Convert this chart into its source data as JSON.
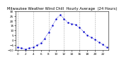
{
  "title": "Milwaukee Weather Wind Chill  Hourly Average  (24 Hours)",
  "hours": [
    0,
    1,
    2,
    3,
    4,
    5,
    6,
    7,
    8,
    9,
    10,
    11,
    12,
    13,
    14,
    15,
    16,
    17,
    18,
    19,
    20,
    21,
    22,
    23
  ],
  "wind_chill": [
    -7,
    -8,
    -9,
    -8,
    -7,
    -5,
    -3,
    2,
    8,
    15,
    22,
    26,
    22,
    18,
    17,
    16,
    13,
    9,
    5,
    3,
    1,
    -2,
    -4,
    -7
  ],
  "ylim": [
    -10,
    30
  ],
  "yticks": [
    -10,
    -5,
    0,
    5,
    10,
    15,
    20,
    25,
    30
  ],
  "xlim": [
    -0.5,
    23.5
  ],
  "line_color": "#0000cc",
  "marker_size": 1.5,
  "grid_color": "#888888",
  "bg_color": "#ffffff",
  "title_fontsize": 3.8,
  "tick_fontsize": 3.0,
  "grid_positions": [
    0,
    4,
    8,
    12,
    16,
    20
  ],
  "xtick_step": 2
}
